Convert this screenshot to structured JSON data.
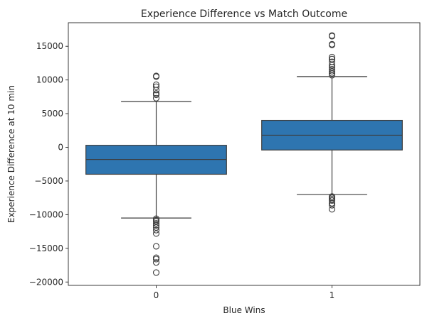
{
  "chart_data": {
    "type": "box",
    "title": "Experience Difference vs Match Outcome",
    "xlabel": "Blue Wins",
    "ylabel": "Experience Difference at 10 min",
    "categories": [
      "0",
      "1"
    ],
    "ylim": [
      -20500,
      18500
    ],
    "yticks": [
      -20000,
      -15000,
      -10000,
      -5000,
      0,
      5000,
      10000,
      15000
    ],
    "ytick_labels": [
      "−20000",
      "−15000",
      "−10000",
      "−5000",
      "0",
      "5000",
      "10000",
      "15000"
    ],
    "box_color": "#2e75b0",
    "line_color": "#3d3d3d",
    "boxes": [
      {
        "category": "0",
        "whisker_low": -10500,
        "q1": -4000,
        "median": -1800,
        "q3": 300,
        "whisker_high": 6800,
        "outliers": [
          10600,
          10500,
          9300,
          9000,
          8500,
          8000,
          7800,
          7300,
          -10600,
          -10800,
          -11000,
          -11300,
          -11600,
          -11900,
          -12300,
          -12800,
          -14700,
          -16400,
          -16600,
          -17100,
          -18600
        ]
      },
      {
        "category": "1",
        "whisker_low": -7000,
        "q1": -400,
        "median": 1800,
        "q3": 4000,
        "whisker_high": 10500,
        "outliers": [
          16600,
          16500,
          15300,
          15200,
          13400,
          13100,
          12700,
          12200,
          11900,
          11600,
          11300,
          11000,
          10700,
          -7300,
          -7500,
          -7700,
          -7900,
          -8300,
          -8600,
          -9200
        ]
      }
    ]
  }
}
